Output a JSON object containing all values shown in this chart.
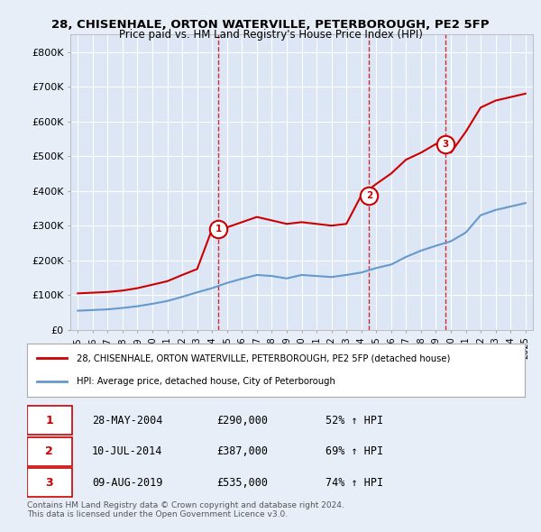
{
  "title1": "28, CHISENHALE, ORTON WATERVILLE, PETERBOROUGH, PE2 5FP",
  "title2": "Price paid vs. HM Land Registry's House Price Index (HPI)",
  "red_label": "28, CHISENHALE, ORTON WATERVILLE, PETERBOROUGH, PE2 5FP (detached house)",
  "blue_label": "HPI: Average price, detached house, City of Peterborough",
  "footer": "Contains HM Land Registry data © Crown copyright and database right 2024.\nThis data is licensed under the Open Government Licence v3.0.",
  "sale_dates": [
    "2004-05-28",
    "2014-07-10",
    "2019-08-09"
  ],
  "sale_prices": [
    290000,
    387000,
    535000
  ],
  "sale_labels": [
    "1",
    "2",
    "3"
  ],
  "sale_pct": [
    "52% ↑ HPI",
    "69% ↑ HPI",
    "74% ↑ HPI"
  ],
  "sale_date_strs": [
    "28-MAY-2004",
    "10-JUL-2014",
    "09-AUG-2019"
  ],
  "sale_price_strs": [
    "£290,000",
    "£387,000",
    "£535,000"
  ],
  "ylim": [
    0,
    850000
  ],
  "yticks": [
    0,
    100000,
    200000,
    300000,
    400000,
    500000,
    600000,
    700000,
    800000
  ],
  "ytick_labels": [
    "£0",
    "£100K",
    "£200K",
    "£300K",
    "£400K",
    "£500K",
    "£600K",
    "£700K",
    "£800K"
  ],
  "background_color": "#e8eef7",
  "plot_bg_color": "#dce6f5",
  "grid_color": "#ffffff",
  "red_color": "#cc0000",
  "blue_color": "#6699cc",
  "sale_marker_color": "#cc0000",
  "vline_color": "#cc0000",
  "hpi_years": [
    1995,
    1996,
    1997,
    1998,
    1999,
    2000,
    2001,
    2002,
    2003,
    2004,
    2005,
    2006,
    2007,
    2008,
    2009,
    2010,
    2011,
    2012,
    2013,
    2014,
    2015,
    2016,
    2017,
    2018,
    2019,
    2020,
    2021,
    2022,
    2023,
    2024,
    2025
  ],
  "hpi_values": [
    55000,
    57000,
    59000,
    63000,
    68000,
    75000,
    83000,
    95000,
    108000,
    120000,
    135000,
    147000,
    158000,
    155000,
    148000,
    158000,
    155000,
    152000,
    158000,
    165000,
    178000,
    188000,
    210000,
    228000,
    242000,
    255000,
    280000,
    330000,
    345000,
    355000,
    365000
  ],
  "red_years": [
    1995,
    1996,
    1997,
    1998,
    1999,
    2000,
    2001,
    2002,
    2003,
    2004,
    2005,
    2006,
    2007,
    2008,
    2009,
    2010,
    2011,
    2012,
    2013,
    2014,
    2015,
    2016,
    2017,
    2018,
    2019,
    2020,
    2021,
    2022,
    2023,
    2024,
    2025
  ],
  "red_values": [
    105000,
    107000,
    109000,
    113000,
    120000,
    130000,
    140000,
    158000,
    175000,
    290000,
    295000,
    310000,
    325000,
    315000,
    305000,
    310000,
    305000,
    300000,
    305000,
    387000,
    420000,
    450000,
    490000,
    510000,
    535000,
    510000,
    570000,
    640000,
    660000,
    670000,
    680000
  ]
}
